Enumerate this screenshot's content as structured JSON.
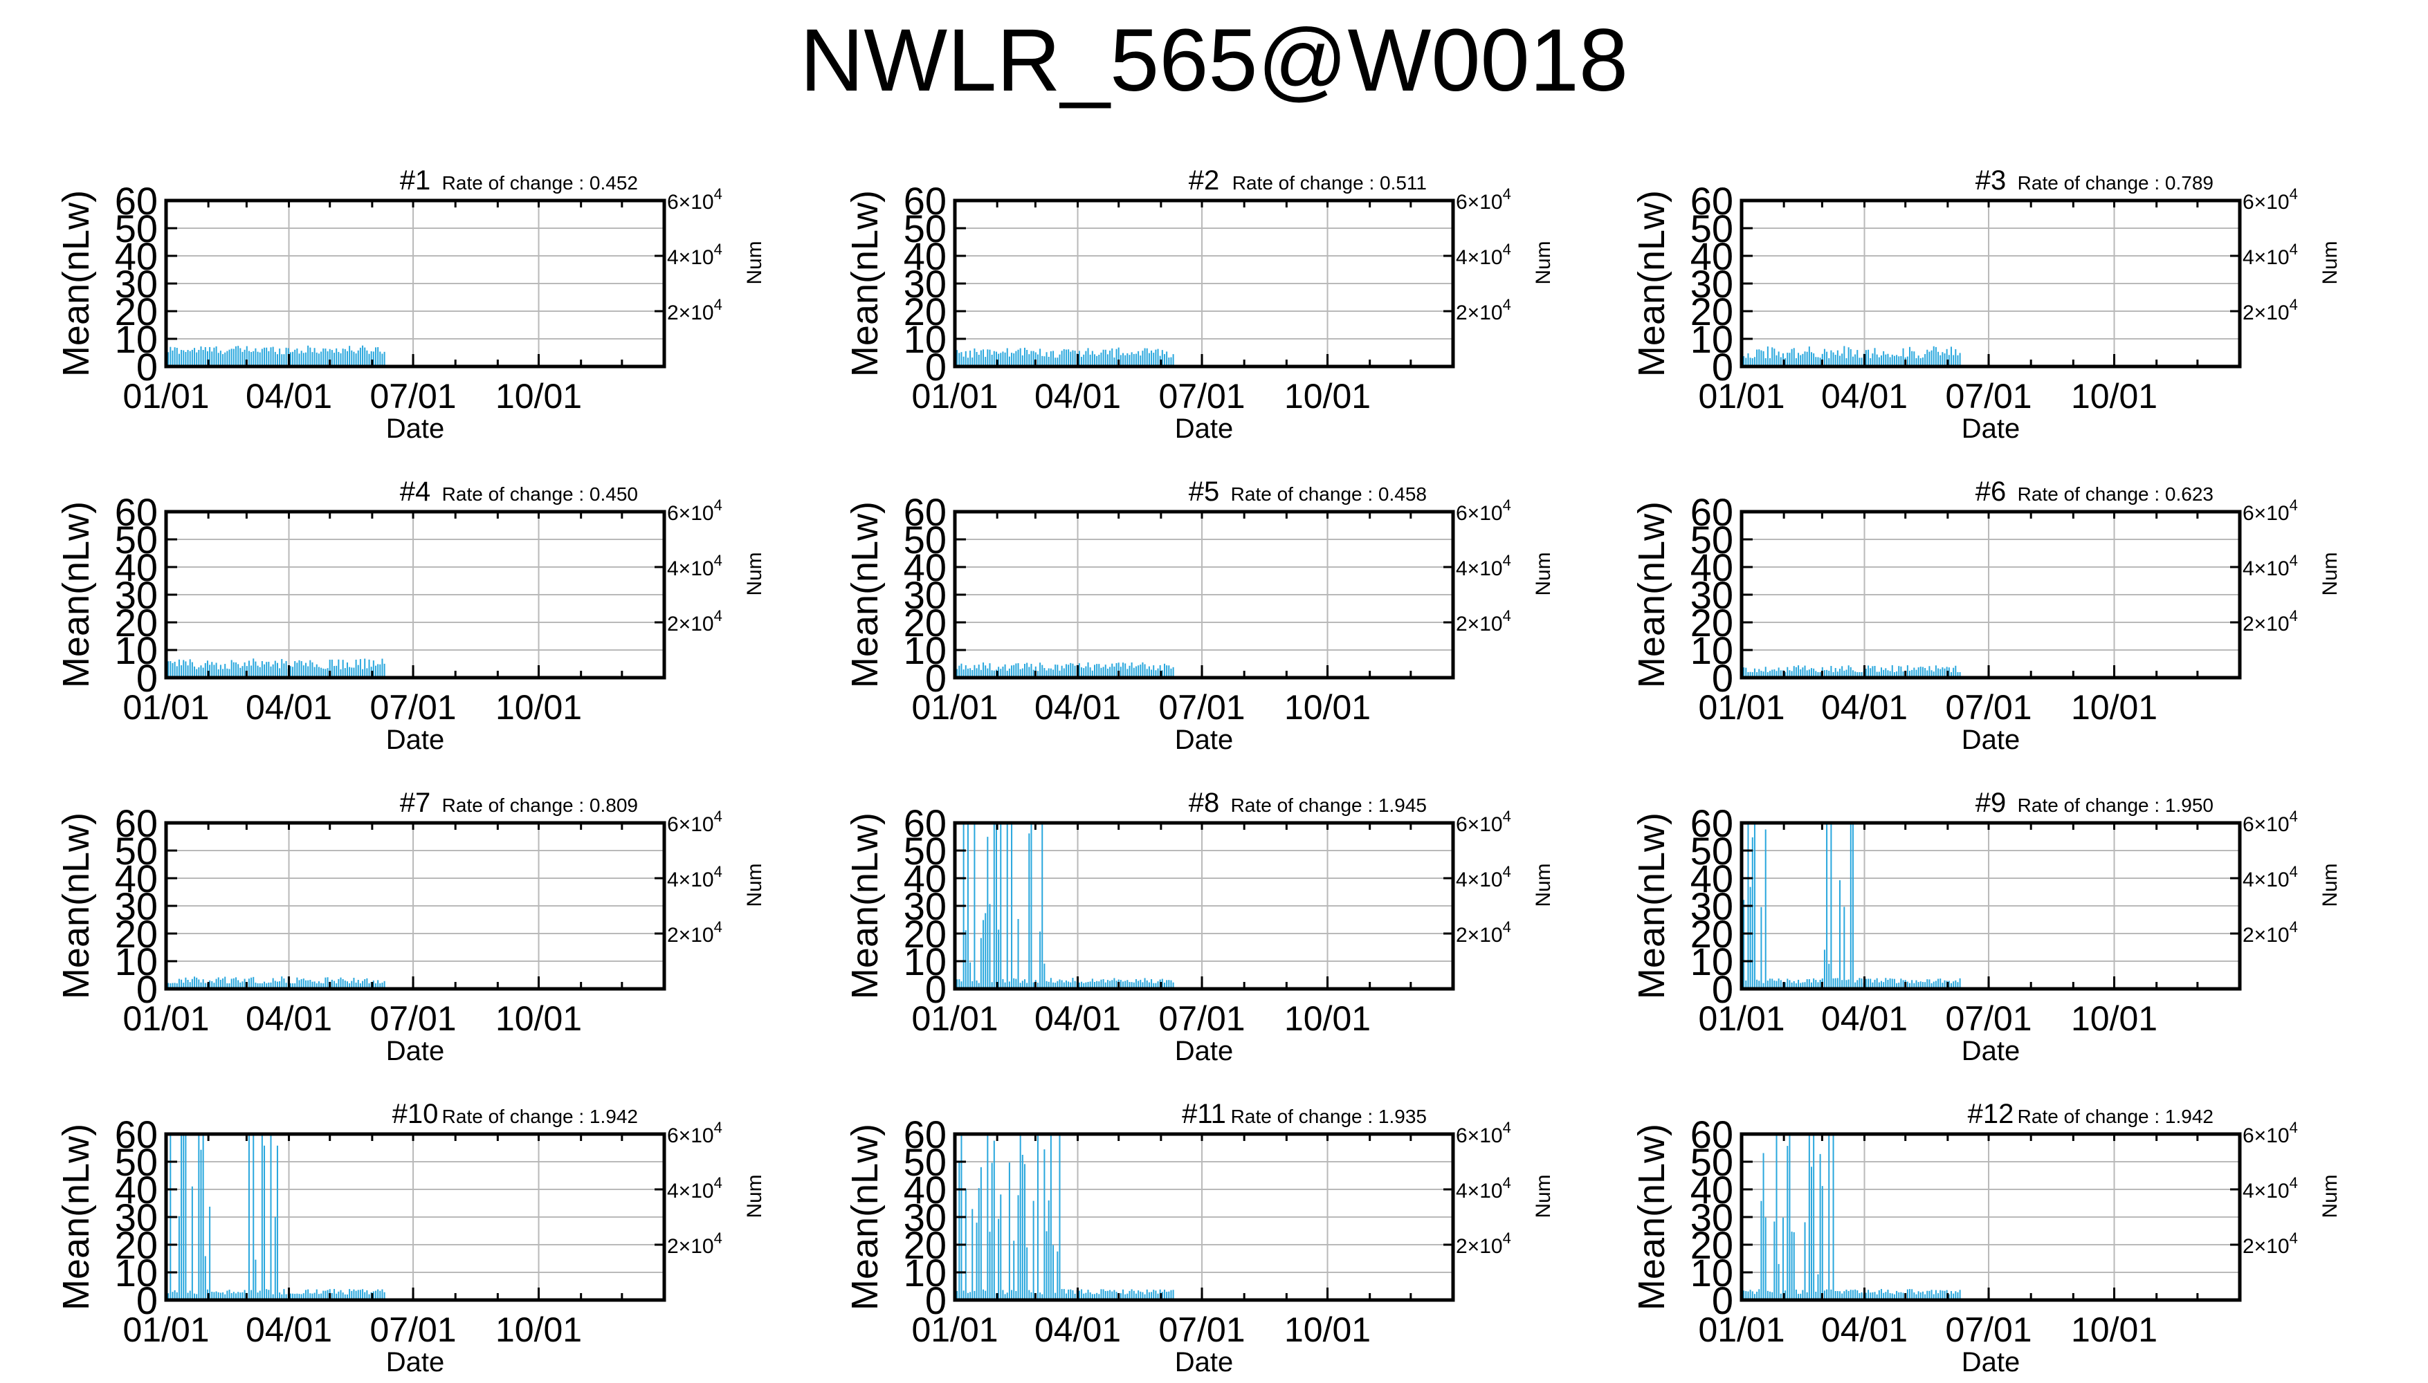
{
  "title": "NWLR_565@W0018",
  "colors": {
    "bar": "#29a7dd",
    "axis": "#000000",
    "grid": "#b9b9b9",
    "text": "#000000"
  },
  "axes": {
    "xlabel": "Date",
    "ylabel": "Mean(nLw)",
    "y2label": "Num",
    "ylim": [
      0,
      60
    ],
    "yticks": [
      "0",
      "10",
      "20",
      "30",
      "40",
      "50",
      "60"
    ],
    "xlim": [
      "01/01",
      "12/31"
    ],
    "xticks": [
      "01/01",
      "04/01",
      "07/01",
      "10/01"
    ],
    "y2ticks": [
      {
        "mant": "2",
        "exp": "4"
      },
      {
        "mant": "4",
        "exp": "4"
      },
      {
        "mant": "6",
        "exp": "4"
      }
    ],
    "y2lim": [
      0,
      60000
    ],
    "rate_prefix": "Rate of change : ",
    "grid": true
  },
  "chart_data": [
    {
      "type": "bar",
      "panel": "#1",
      "rate": "0.452",
      "date_end": "06/10",
      "clipped_spikes": [],
      "series": [
        {
          "name": "Mean(nLw)",
          "typical_value": 6,
          "range": [
            4,
            8
          ]
        }
      ]
    },
    {
      "type": "bar",
      "panel": "#2",
      "rate": "0.511",
      "date_end": "06/10",
      "clipped_spikes": [],
      "series": [
        {
          "name": "Mean(nLw)",
          "typical_value": 5,
          "range": [
            3,
            8
          ]
        }
      ]
    },
    {
      "type": "bar",
      "panel": "#3",
      "rate": "0.789",
      "date_end": "06/10",
      "clipped_spikes": [],
      "series": [
        {
          "name": "Mean(nLw)",
          "typical_value": 5,
          "range": [
            3,
            9
          ]
        }
      ]
    },
    {
      "type": "bar",
      "panel": "#4",
      "rate": "0.450",
      "date_end": "06/10",
      "clipped_spikes": [],
      "series": [
        {
          "name": "Mean(nLw)",
          "typical_value": 5,
          "range": [
            3,
            8
          ]
        }
      ]
    },
    {
      "type": "bar",
      "panel": "#5",
      "rate": "0.458",
      "date_end": "06/10",
      "clipped_spikes": [],
      "series": [
        {
          "name": "Mean(nLw)",
          "typical_value": 4,
          "range": [
            2,
            6
          ]
        }
      ]
    },
    {
      "type": "bar",
      "panel": "#6",
      "rate": "0.623",
      "date_end": "06/10",
      "clipped_spikes": [],
      "series": [
        {
          "name": "Mean(nLw)",
          "typical_value": 3,
          "range": [
            2,
            6
          ]
        }
      ]
    },
    {
      "type": "bar",
      "panel": "#7",
      "rate": "0.809",
      "date_end": "06/10",
      "clipped_spikes": [],
      "series": [
        {
          "name": "Mean(nLw)",
          "typical_value": 3,
          "range": [
            2,
            6
          ]
        }
      ]
    },
    {
      "type": "bar",
      "panel": "#8",
      "rate": "1.945",
      "date_end": "06/10",
      "clipped_spikes": [
        {
          "from": "01/05",
          "to": "03/10",
          "peak": 60
        }
      ],
      "series": [
        {
          "name": "Mean(nLw)",
          "typical_value": 3,
          "range": [
            1,
            60
          ]
        }
      ]
    },
    {
      "type": "bar",
      "panel": "#9",
      "rate": "1.950",
      "date_end": "06/10",
      "clipped_spikes": [
        {
          "from": "01/01",
          "to": "01/20",
          "peak": 60
        },
        {
          "from": "03/01",
          "to": "03/25",
          "peak": 60
        }
      ],
      "series": [
        {
          "name": "Mean(nLw)",
          "typical_value": 3,
          "range": [
            1,
            60
          ]
        }
      ]
    },
    {
      "type": "bar",
      "panel": "#10",
      "rate": "1.942",
      "date_end": "06/10",
      "clipped_spikes": [
        {
          "from": "01/01",
          "to": "02/05",
          "peak": 60
        },
        {
          "from": "03/01",
          "to": "03/25",
          "peak": 60
        }
      ],
      "series": [
        {
          "name": "Mean(nLw)",
          "typical_value": 3,
          "range": [
            1,
            60
          ]
        }
      ]
    },
    {
      "type": "bar",
      "panel": "#11",
      "rate": "1.935",
      "date_end": "06/10",
      "clipped_spikes": [
        {
          "from": "01/01",
          "to": "03/20",
          "peak": 60
        }
      ],
      "series": [
        {
          "name": "Mean(nLw)",
          "typical_value": 3,
          "range": [
            1,
            60
          ]
        }
      ]
    },
    {
      "type": "bar",
      "panel": "#12",
      "rate": "1.942",
      "date_end": "06/10",
      "clipped_spikes": [
        {
          "from": "01/15",
          "to": "03/10",
          "peak": 60
        }
      ],
      "series": [
        {
          "name": "Mean(nLw)",
          "typical_value": 3,
          "range": [
            1,
            60
          ]
        }
      ]
    }
  ]
}
